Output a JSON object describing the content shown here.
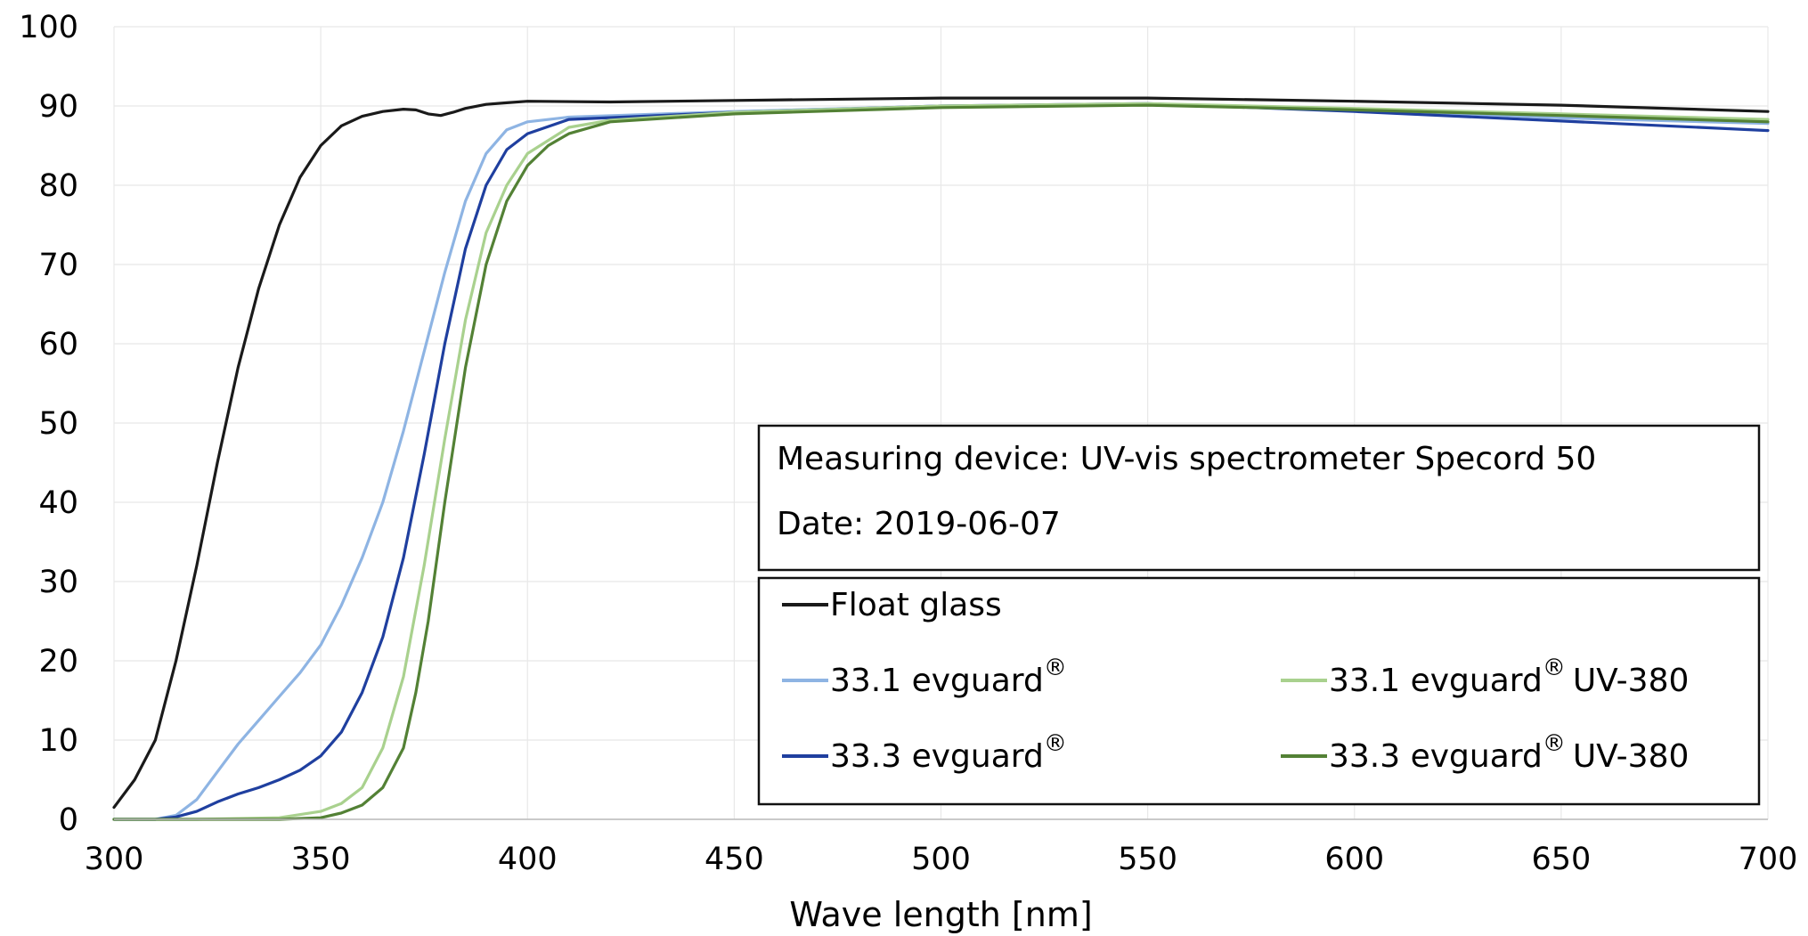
{
  "chart_data": {
    "type": "line",
    "title": "",
    "xlabel": "Wave length [nm]",
    "ylabel": "",
    "xlim": [
      300,
      700
    ],
    "ylim": [
      0,
      100
    ],
    "x_ticks": [
      "300",
      "350",
      "400",
      "450",
      "500",
      "550",
      "600",
      "650",
      "700"
    ],
    "y_ticks": [
      "0",
      "10",
      "20",
      "30",
      "40",
      "50",
      "60",
      "70",
      "80",
      "90",
      "100"
    ],
    "grid": true,
    "legend_position": "bottom-right",
    "info_box": {
      "line1": "Measuring device: UV-vis spectrometer Specord 50",
      "line2": "Date: 2019-06-07"
    },
    "series": [
      {
        "name": "Float glass",
        "color": "#1a1a1a",
        "points": [
          [
            300,
            1.5
          ],
          [
            305,
            5
          ],
          [
            310,
            10
          ],
          [
            315,
            20
          ],
          [
            320,
            32
          ],
          [
            325,
            45
          ],
          [
            330,
            57
          ],
          [
            335,
            67
          ],
          [
            340,
            75
          ],
          [
            345,
            81
          ],
          [
            350,
            85
          ],
          [
            355,
            87.5
          ],
          [
            360,
            88.7
          ],
          [
            365,
            89.3
          ],
          [
            370,
            89.6
          ],
          [
            373,
            89.5
          ],
          [
            376,
            89
          ],
          [
            379,
            88.8
          ],
          [
            382,
            89.2
          ],
          [
            385,
            89.7
          ],
          [
            390,
            90.2
          ],
          [
            395,
            90.4
          ],
          [
            400,
            90.6
          ],
          [
            420,
            90.5
          ],
          [
            450,
            90.7
          ],
          [
            500,
            91
          ],
          [
            550,
            91
          ],
          [
            600,
            90.6
          ],
          [
            650,
            90.1
          ],
          [
            700,
            89.3
          ]
        ]
      },
      {
        "name": "33.1 evguard",
        "sup": "®",
        "color": "#8eb4e3",
        "points": [
          [
            300,
            0
          ],
          [
            310,
            0
          ],
          [
            315,
            0.5
          ],
          [
            320,
            2.5
          ],
          [
            325,
            6
          ],
          [
            330,
            9.5
          ],
          [
            335,
            12.5
          ],
          [
            340,
            15.5
          ],
          [
            345,
            18.5
          ],
          [
            350,
            22
          ],
          [
            355,
            27
          ],
          [
            360,
            33
          ],
          [
            365,
            40
          ],
          [
            370,
            49
          ],
          [
            375,
            59
          ],
          [
            380,
            69
          ],
          [
            385,
            78
          ],
          [
            390,
            84
          ],
          [
            395,
            87
          ],
          [
            400,
            88
          ],
          [
            410,
            88.6
          ],
          [
            450,
            89.3
          ],
          [
            500,
            90
          ],
          [
            550,
            90.2
          ],
          [
            600,
            89.6
          ],
          [
            650,
            88.5
          ],
          [
            700,
            87.8
          ]
        ]
      },
      {
        "name": "33.3 evguard",
        "sup": "®",
        "color": "#1f3f9f",
        "points": [
          [
            300,
            0
          ],
          [
            310,
            0
          ],
          [
            315,
            0.3
          ],
          [
            320,
            1
          ],
          [
            325,
            2.2
          ],
          [
            330,
            3.2
          ],
          [
            335,
            4
          ],
          [
            340,
            5
          ],
          [
            345,
            6.2
          ],
          [
            350,
            8
          ],
          [
            355,
            11
          ],
          [
            360,
            16
          ],
          [
            365,
            23
          ],
          [
            370,
            33
          ],
          [
            375,
            46
          ],
          [
            380,
            60
          ],
          [
            385,
            72
          ],
          [
            390,
            80
          ],
          [
            395,
            84.5
          ],
          [
            400,
            86.5
          ],
          [
            410,
            88.3
          ],
          [
            450,
            89.2
          ],
          [
            500,
            90
          ],
          [
            550,
            90.3
          ],
          [
            600,
            89.3
          ],
          [
            650,
            88.1
          ],
          [
            700,
            86.9
          ]
        ]
      },
      {
        "name": "33.1 evguard",
        "sup": "®",
        "suffix": "UV-380",
        "color": "#a9d18e",
        "points": [
          [
            300,
            0
          ],
          [
            320,
            0
          ],
          [
            340,
            0.2
          ],
          [
            350,
            1
          ],
          [
            355,
            2
          ],
          [
            360,
            4
          ],
          [
            365,
            9
          ],
          [
            370,
            18
          ],
          [
            375,
            32
          ],
          [
            380,
            48
          ],
          [
            385,
            63
          ],
          [
            390,
            74
          ],
          [
            395,
            80
          ],
          [
            400,
            84
          ],
          [
            410,
            87.3
          ],
          [
            420,
            88.2
          ],
          [
            450,
            89.2
          ],
          [
            500,
            90
          ],
          [
            550,
            90.3
          ],
          [
            600,
            89.7
          ],
          [
            650,
            89
          ],
          [
            700,
            88.3
          ]
        ]
      },
      {
        "name": "33.3 evguard",
        "sup": "®",
        "suffix": "UV-380",
        "color": "#538135",
        "points": [
          [
            300,
            0
          ],
          [
            340,
            0
          ],
          [
            350,
            0.2
          ],
          [
            355,
            0.8
          ],
          [
            360,
            1.8
          ],
          [
            365,
            4
          ],
          [
            370,
            9
          ],
          [
            373,
            16
          ],
          [
            376,
            25
          ],
          [
            380,
            40
          ],
          [
            385,
            57
          ],
          [
            390,
            70
          ],
          [
            395,
            78
          ],
          [
            400,
            82.5
          ],
          [
            405,
            85
          ],
          [
            410,
            86.5
          ],
          [
            420,
            88
          ],
          [
            450,
            89
          ],
          [
            500,
            89.8
          ],
          [
            550,
            90.1
          ],
          [
            600,
            89.5
          ],
          [
            650,
            88.8
          ],
          [
            700,
            88
          ]
        ]
      }
    ]
  }
}
